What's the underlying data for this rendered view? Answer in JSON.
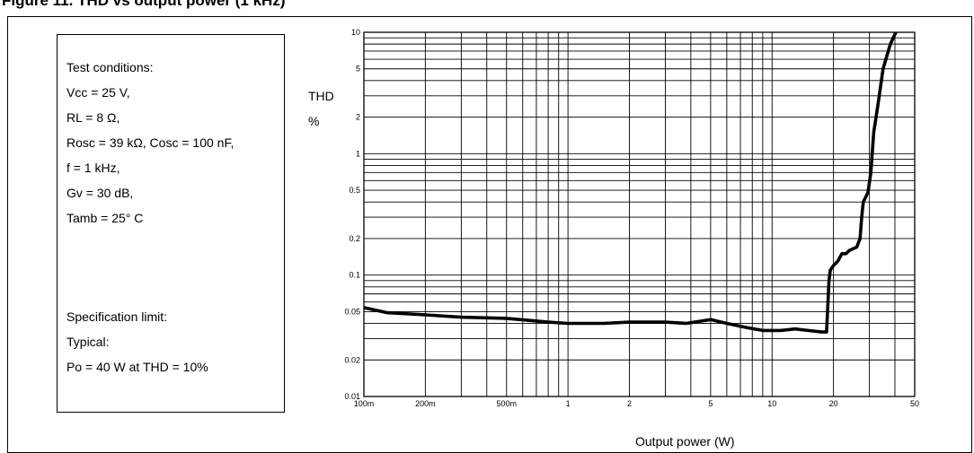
{
  "figure_title": "Figure 11. THD vs output power (1 kHz)",
  "conditions": [
    "Test conditions:",
    "Vcc = 25 V,",
    "RL = 8 Ω,",
    "Rosc = 39 kΩ, Cosc = 100 nF,",
    "f = 1 kHz,",
    "Gv = 30 dB,",
    "Tamb = 25° C",
    "Specification limit:",
    "Typical:",
    "Po = 40 W at THD = 10%"
  ],
  "chart_data": {
    "type": "line",
    "title": "",
    "xlabel": "Output power (W)",
    "ylabel": "THD %",
    "x_scale": "log",
    "y_scale": "log",
    "xlim": [
      0.1,
      50
    ],
    "ylim": [
      0.01,
      10
    ],
    "grid": true,
    "x_ticks": [
      {
        "value": 0.1,
        "label": "100m"
      },
      {
        "value": 0.2,
        "label": "200m"
      },
      {
        "value": 0.5,
        "label": "500m"
      },
      {
        "value": 1,
        "label": "1"
      },
      {
        "value": 2,
        "label": "2"
      },
      {
        "value": 5,
        "label": "5"
      },
      {
        "value": 10,
        "label": "10"
      },
      {
        "value": 20,
        "label": "20"
      },
      {
        "value": 50,
        "label": "50"
      }
    ],
    "y_ticks": [
      {
        "value": 10,
        "label": "10"
      },
      {
        "value": 5,
        "label": "5"
      },
      {
        "value": 2,
        "label": "2"
      },
      {
        "value": 1,
        "label": "1"
      },
      {
        "value": 0.5,
        "label": "0.5"
      },
      {
        "value": 0.2,
        "label": "0.2"
      },
      {
        "value": 0.1,
        "label": "0.1"
      },
      {
        "value": 0.05,
        "label": "0.05"
      },
      {
        "value": 0.02,
        "label": "0.02"
      },
      {
        "value": 0.01,
        "label": "0.01"
      }
    ],
    "series": [
      {
        "x": [
          0.1,
          0.13,
          0.2,
          0.3,
          0.5,
          0.8,
          1.0,
          1.5,
          2.0,
          3.0,
          3.8,
          5.0,
          6.0,
          7.5,
          9.0,
          11.0,
          13.0,
          15.0,
          17.5,
          18.5,
          18.8,
          19.0,
          19.3,
          20.0,
          21.0,
          22.0,
          23.0,
          24.0,
          26.0,
          27.0,
          27.5,
          28.0,
          29.5,
          30.5,
          31.5,
          33.0,
          35.0,
          38.0,
          41.0,
          43.0
        ],
        "y": [
          0.054,
          0.049,
          0.047,
          0.045,
          0.044,
          0.041,
          0.04,
          0.04,
          0.041,
          0.041,
          0.04,
          0.043,
          0.04,
          0.037,
          0.035,
          0.035,
          0.036,
          0.035,
          0.034,
          0.034,
          0.06,
          0.09,
          0.11,
          0.12,
          0.13,
          0.15,
          0.15,
          0.16,
          0.17,
          0.2,
          0.3,
          0.4,
          0.48,
          0.7,
          1.5,
          2.5,
          5.0,
          8.0,
          10.5,
          13.0
        ]
      }
    ]
  }
}
